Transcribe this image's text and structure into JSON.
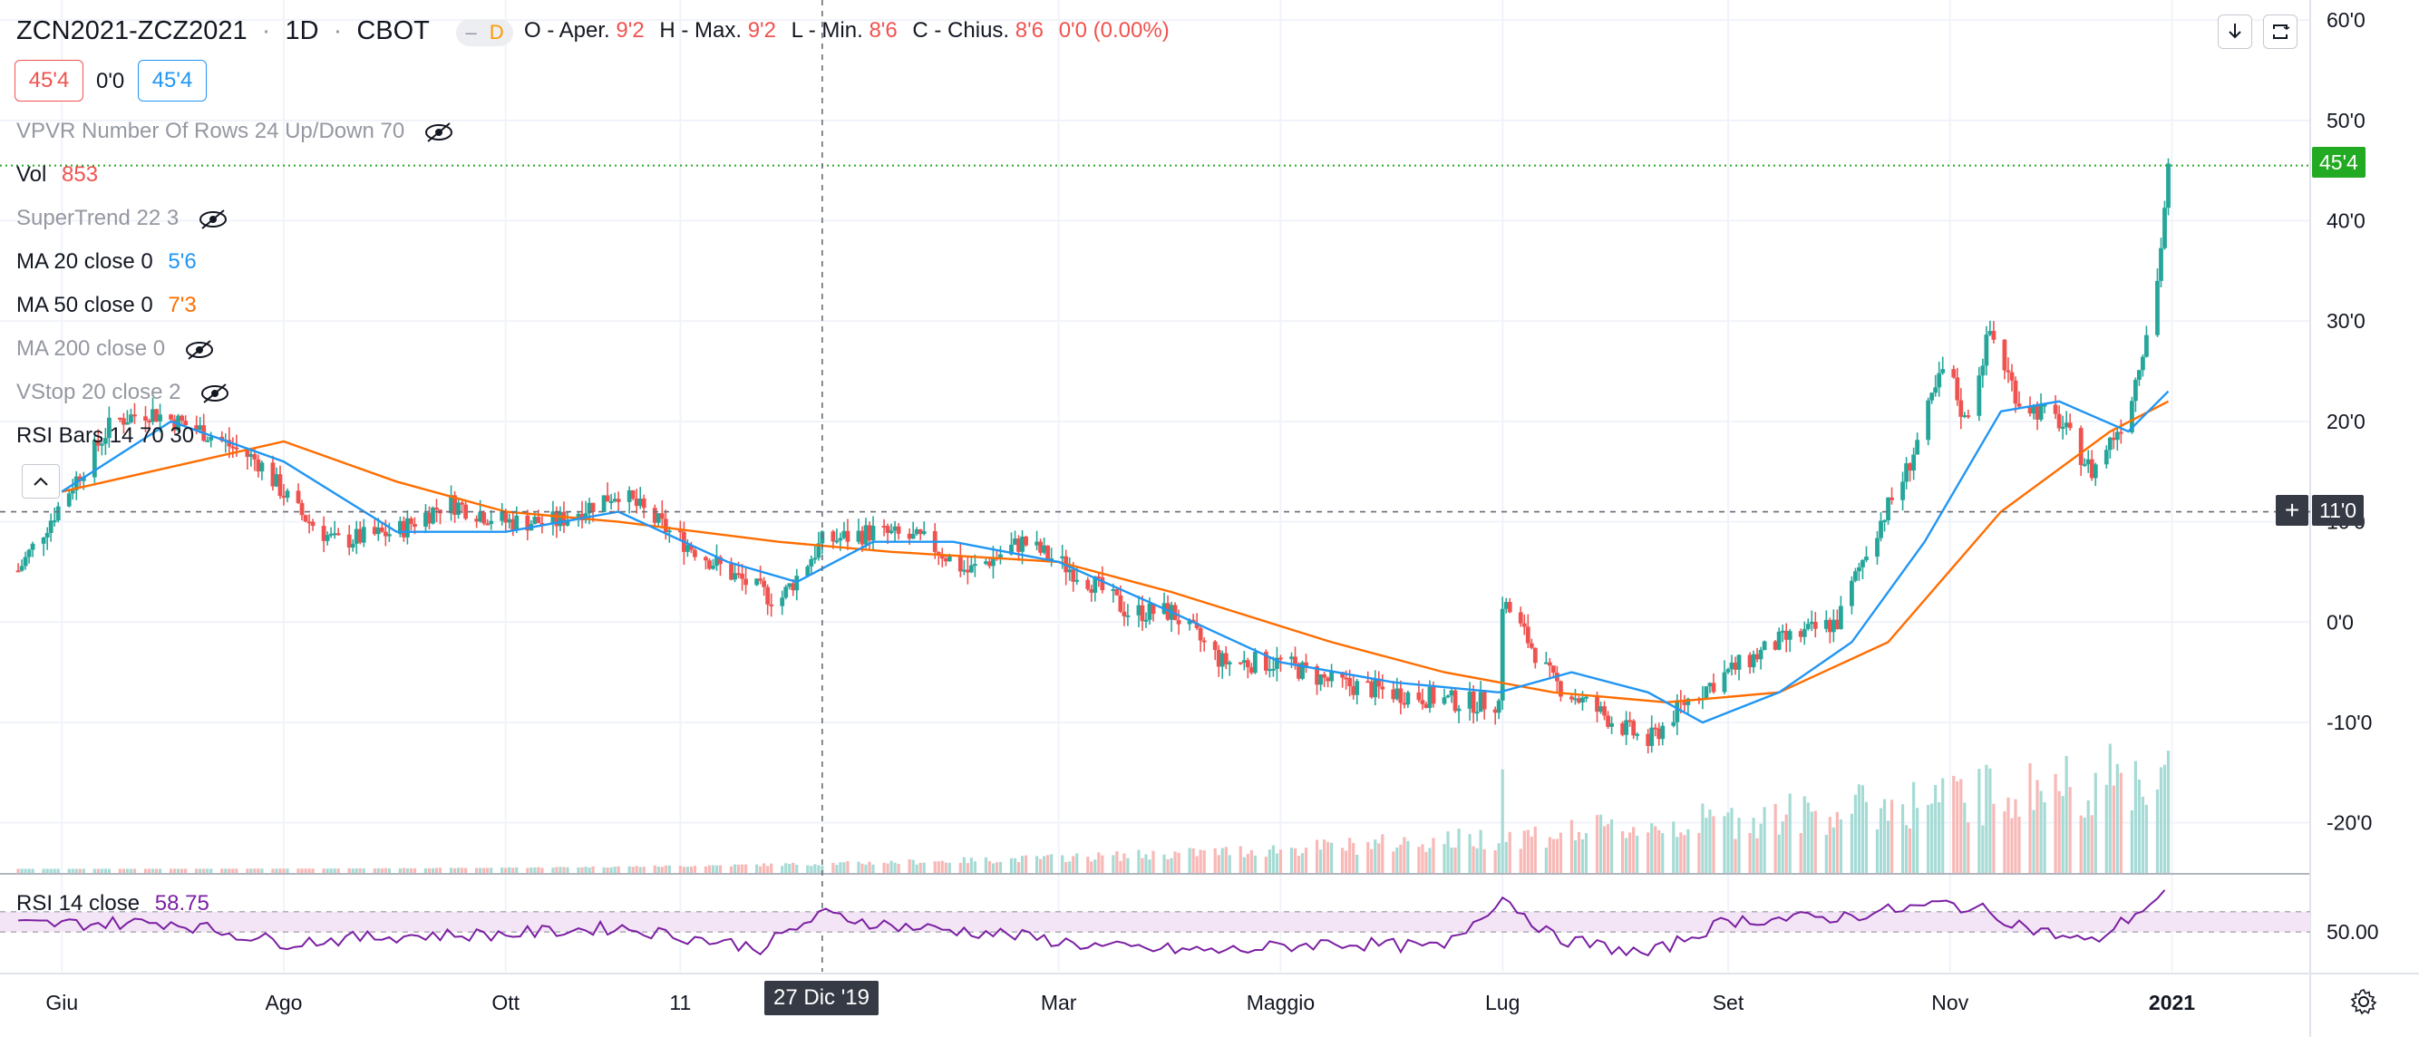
{
  "header": {
    "symbol": "ZCN2021-ZCZ2021",
    "interval": "1D",
    "exchange": "CBOT",
    "mode_badge": "D",
    "ohlc": {
      "open_label": "O - Aper.",
      "open": "9'2",
      "high_label": "H - Max.",
      "high": "9'2",
      "low_label": "L - Min.",
      "low": "8'6",
      "close_label": "C - Chius.",
      "close": "8'6",
      "change": "0'0 (0.00%)"
    },
    "bid": "45'4",
    "spread": "0'0",
    "ask": "45'4"
  },
  "indicators": [
    {
      "label": "VPVR Number Of Rows 24 Up/Down 70",
      "value": "",
      "hidden": true
    },
    {
      "label": "Vol",
      "value": "853",
      "hidden": false,
      "color": "#ef5350"
    },
    {
      "label": "SuperTrend 22 3",
      "value": "",
      "hidden": true
    },
    {
      "label": "MA 20 close 0",
      "value": "5'6",
      "hidden": false,
      "color": "#2196f3"
    },
    {
      "label": "MA 50 close 0",
      "value": "7'3",
      "hidden": false,
      "color": "#ff6d00"
    },
    {
      "label": "MA 200 close 0",
      "value": "",
      "hidden": true
    },
    {
      "label": "VStop 20 close 2",
      "value": "",
      "hidden": true
    },
    {
      "label": "RSI Bars 14 70 30",
      "value": "",
      "hidden": false
    }
  ],
  "rsi_panel": {
    "label": "RSI 14 close",
    "value": "58.75",
    "tick": "50.00"
  },
  "toolbar": {
    "download_icon": "download-icon",
    "fullscreen_icon": "fullscreen-icon",
    "settings_icon": "gear-icon"
  },
  "crosshair": {
    "date_label": "27 Dic '19",
    "price_label": "11'0"
  },
  "last_price_tag": "45'4",
  "colors": {
    "up": "#26a69a",
    "down": "#ef5350",
    "ma20": "#2196f3",
    "ma50": "#ff6d00",
    "rsi": "#7b1fa2",
    "last": "#22ab22"
  },
  "chart_data": {
    "type": "candlestick",
    "ylim": [
      -25,
      62
    ],
    "y_ticks": [
      "60'0",
      "50'0",
      "40'0",
      "30'0",
      "20'0",
      "10'0",
      "0'0",
      "-10'0",
      "-20'0"
    ],
    "x_ticks": [
      "Giu",
      "Ago",
      "Ott",
      "11",
      "Mar",
      "Maggio",
      "Lug",
      "Set",
      "Nov",
      "2021"
    ],
    "price_path": [
      {
        "date": "2019-06-01",
        "value": 12
      },
      {
        "date": "2019-06-15",
        "value": 20
      },
      {
        "date": "2019-06-25",
        "value": 21
      },
      {
        "date": "2019-07-10",
        "value": 19
      },
      {
        "date": "2019-07-25",
        "value": 16
      },
      {
        "date": "2019-08-05",
        "value": 11
      },
      {
        "date": "2019-08-15",
        "value": 8
      },
      {
        "date": "2019-09-01",
        "value": 9
      },
      {
        "date": "2019-09-15",
        "value": 12
      },
      {
        "date": "2019-10-01",
        "value": 10
      },
      {
        "date": "2019-10-15",
        "value": 10
      },
      {
        "date": "2019-11-01",
        "value": 13
      },
      {
        "date": "2019-11-15",
        "value": 9
      },
      {
        "date": "2019-12-01",
        "value": 5
      },
      {
        "date": "2019-12-15",
        "value": 2
      },
      {
        "date": "2019-12-27",
        "value": 8
      },
      {
        "date": "2020-01-10",
        "value": 9
      },
      {
        "date": "2020-01-25",
        "value": 8
      },
      {
        "date": "2020-02-05",
        "value": 5
      },
      {
        "date": "2020-02-20",
        "value": 8
      },
      {
        "date": "2020-03-01",
        "value": 6
      },
      {
        "date": "2020-03-10",
        "value": 4
      },
      {
        "date": "2020-03-20",
        "value": 1
      },
      {
        "date": "2020-04-01",
        "value": 1
      },
      {
        "date": "2020-04-15",
        "value": -4
      },
      {
        "date": "2020-05-01",
        "value": -4
      },
      {
        "date": "2020-05-15",
        "value": -6
      },
      {
        "date": "2020-06-01",
        "value": -7
      },
      {
        "date": "2020-06-20",
        "value": -8
      },
      {
        "date": "2020-06-30",
        "value": -8
      },
      {
        "date": "2020-07-01",
        "value": 2
      },
      {
        "date": "2020-07-05",
        "value": 0
      },
      {
        "date": "2020-07-15",
        "value": -6
      },
      {
        "date": "2020-08-01",
        "value": -10
      },
      {
        "date": "2020-08-10",
        "value": -12
      },
      {
        "date": "2020-08-20",
        "value": -8
      },
      {
        "date": "2020-09-01",
        "value": -5
      },
      {
        "date": "2020-09-15",
        "value": -2
      },
      {
        "date": "2020-10-01",
        "value": 0
      },
      {
        "date": "2020-10-10",
        "value": 8
      },
      {
        "date": "2020-10-20",
        "value": 15
      },
      {
        "date": "2020-10-31",
        "value": 26
      },
      {
        "date": "2020-11-05",
        "value": 20
      },
      {
        "date": "2020-11-12",
        "value": 29
      },
      {
        "date": "2020-11-20",
        "value": 22
      },
      {
        "date": "2020-12-01",
        "value": 20
      },
      {
        "date": "2020-12-10",
        "value": 15
      },
      {
        "date": "2020-12-20",
        "value": 21
      },
      {
        "date": "2020-12-28",
        "value": 34
      },
      {
        "date": "2020-12-31",
        "value": 45
      }
    ],
    "ma20": [
      {
        "date": "2019-06-01",
        "value": 13
      },
      {
        "date": "2019-07-01",
        "value": 20
      },
      {
        "date": "2019-08-01",
        "value": 16
      },
      {
        "date": "2019-09-01",
        "value": 9
      },
      {
        "date": "2019-10-01",
        "value": 9
      },
      {
        "date": "2019-11-01",
        "value": 11
      },
      {
        "date": "2019-12-01",
        "value": 6
      },
      {
        "date": "2019-12-20",
        "value": 4
      },
      {
        "date": "2020-01-10",
        "value": 8
      },
      {
        "date": "2020-02-01",
        "value": 8
      },
      {
        "date": "2020-03-01",
        "value": 6
      },
      {
        "date": "2020-04-01",
        "value": 1
      },
      {
        "date": "2020-05-01",
        "value": -4
      },
      {
        "date": "2020-06-01",
        "value": -6
      },
      {
        "date": "2020-06-30",
        "value": -7
      },
      {
        "date": "2020-07-20",
        "value": -5
      },
      {
        "date": "2020-08-10",
        "value": -7
      },
      {
        "date": "2020-08-25",
        "value": -10
      },
      {
        "date": "2020-09-15",
        "value": -7
      },
      {
        "date": "2020-10-05",
        "value": -2
      },
      {
        "date": "2020-10-25",
        "value": 8
      },
      {
        "date": "2020-11-15",
        "value": 21
      },
      {
        "date": "2020-12-01",
        "value": 22
      },
      {
        "date": "2020-12-20",
        "value": 19
      },
      {
        "date": "2020-12-31",
        "value": 23
      }
    ],
    "ma50": [
      {
        "date": "2019-06-01",
        "value": 13
      },
      {
        "date": "2019-08-01",
        "value": 18
      },
      {
        "date": "2019-09-01",
        "value": 14
      },
      {
        "date": "2019-10-01",
        "value": 11
      },
      {
        "date": "2019-11-01",
        "value": 10
      },
      {
        "date": "2019-12-15",
        "value": 8
      },
      {
        "date": "2020-01-15",
        "value": 7
      },
      {
        "date": "2020-03-01",
        "value": 6
      },
      {
        "date": "2020-04-01",
        "value": 3
      },
      {
        "date": "2020-05-15",
        "value": -2
      },
      {
        "date": "2020-06-15",
        "value": -5
      },
      {
        "date": "2020-07-15",
        "value": -7
      },
      {
        "date": "2020-08-15",
        "value": -8
      },
      {
        "date": "2020-09-15",
        "value": -7
      },
      {
        "date": "2020-10-15",
        "value": -2
      },
      {
        "date": "2020-11-15",
        "value": 11
      },
      {
        "date": "2020-12-15",
        "value": 19
      },
      {
        "date": "2020-12-31",
        "value": 22
      }
    ],
    "rsi": [
      {
        "date": "2019-06-01",
        "value": 56
      },
      {
        "date": "2019-07-01",
        "value": 57
      },
      {
        "date": "2019-08-01",
        "value": 45
      },
      {
        "date": "2019-09-01",
        "value": 49
      },
      {
        "date": "2019-10-01",
        "value": 50
      },
      {
        "date": "2019-11-01",
        "value": 54
      },
      {
        "date": "2019-12-10",
        "value": 42
      },
      {
        "date": "2019-12-27",
        "value": 62
      },
      {
        "date": "2020-01-15",
        "value": 55
      },
      {
        "date": "2020-02-15",
        "value": 50
      },
      {
        "date": "2020-03-15",
        "value": 42
      },
      {
        "date": "2020-04-15",
        "value": 40
      },
      {
        "date": "2020-05-15",
        "value": 45
      },
      {
        "date": "2020-06-15",
        "value": 42
      },
      {
        "date": "2020-07-01",
        "value": 72
      },
      {
        "date": "2020-07-15",
        "value": 48
      },
      {
        "date": "2020-08-10",
        "value": 38
      },
      {
        "date": "2020-09-01",
        "value": 58
      },
      {
        "date": "2020-10-01",
        "value": 60
      },
      {
        "date": "2020-10-31",
        "value": 68
      },
      {
        "date": "2020-11-10",
        "value": 64
      },
      {
        "date": "2020-11-25",
        "value": 52
      },
      {
        "date": "2020-12-10",
        "value": 45
      },
      {
        "date": "2020-12-31",
        "value": 75
      }
    ],
    "rsi_bands": [
      30,
      70
    ],
    "volume_max": 55
  }
}
